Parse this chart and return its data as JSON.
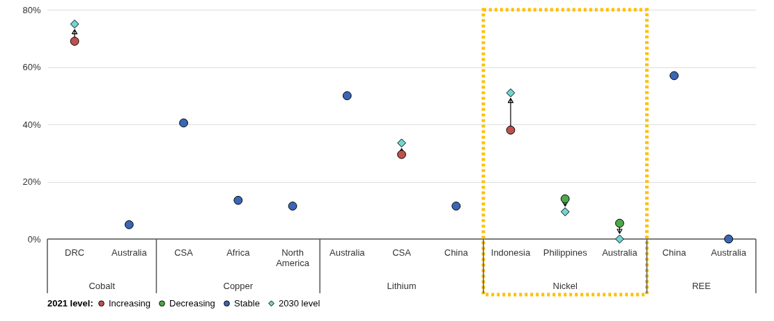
{
  "chart_data": {
    "type": "scatter",
    "categories": [
      "DRC",
      "Australia",
      "CSA",
      "Africa",
      "North America",
      "Australia",
      "CSA",
      "China",
      "Indonesia",
      "Philippines",
      "Australia",
      "China",
      "Australia"
    ],
    "series": [
      {
        "name": "Increasing",
        "color": "#c0504d",
        "marker": "circle",
        "values": [
          69,
          null,
          null,
          null,
          null,
          null,
          29.5,
          null,
          38,
          null,
          null,
          null,
          null
        ]
      },
      {
        "name": "Decreasing",
        "color": "#4ea84a",
        "marker": "circle",
        "values": [
          null,
          null,
          null,
          null,
          null,
          null,
          null,
          null,
          null,
          14,
          5.5,
          null,
          null
        ]
      },
      {
        "name": "Stable",
        "color": "#3a66b5",
        "marker": "circle",
        "values": [
          null,
          5,
          40.5,
          13.5,
          11.5,
          50,
          null,
          11.5,
          null,
          null,
          null,
          57,
          0
        ]
      },
      {
        "name": "2030 level",
        "color": "#6fd6d0",
        "marker": "diamond",
        "values": [
          75,
          null,
          null,
          null,
          null,
          null,
          33.5,
          null,
          51,
          9.5,
          0,
          null,
          null
        ]
      }
    ],
    "legend_title": "2021 level:",
    "legend": "bottom",
    "annotations": [
      "Cobalt",
      "Copper",
      "Lithium",
      "Nickel",
      "REE"
    ],
    "ylim": [
      0,
      80
    ],
    "yticks": [
      {
        "value": 0,
        "label": "0%"
      },
      {
        "value": 20,
        "label": "20%"
      },
      {
        "value": 40,
        "label": "40%"
      },
      {
        "value": 60,
        "label": "60%"
      },
      {
        "value": 80,
        "label": "80%"
      }
    ],
    "grid": "y"
  }
}
